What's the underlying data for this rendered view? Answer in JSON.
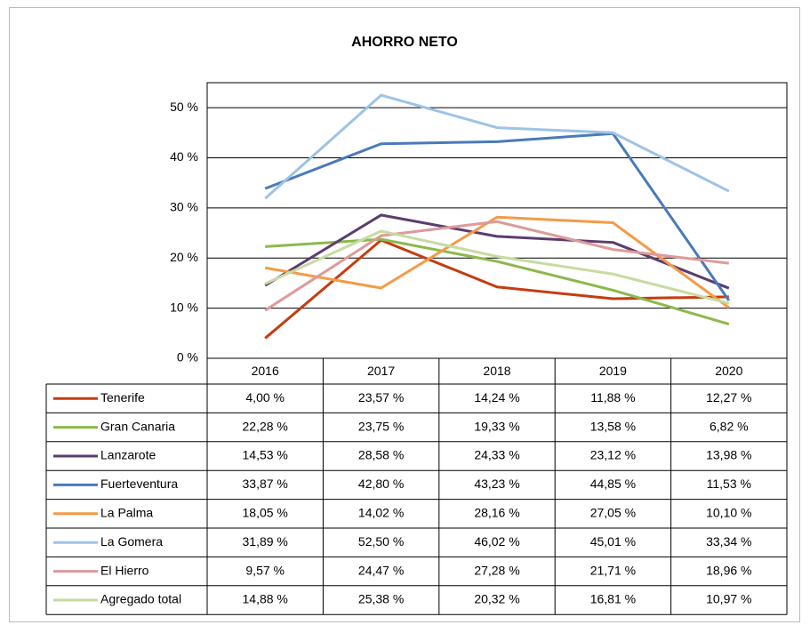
{
  "chart_data": {
    "type": "line",
    "title": "AHORRO NETO",
    "categories": [
      "2016",
      "2017",
      "2018",
      "2019",
      "2020"
    ],
    "ylim": [
      0,
      55
    ],
    "yticks": [
      {
        "value": 0,
        "label": "0 %"
      },
      {
        "value": 10,
        "label": "10 %"
      },
      {
        "value": 20,
        "label": "20 %"
      },
      {
        "value": 30,
        "label": "30 %"
      },
      {
        "value": 40,
        "label": "40 %"
      },
      {
        "value": 50,
        "label": "50 %"
      }
    ],
    "grid": true,
    "series": [
      {
        "name": "Tenerife",
        "color": "#c43c0f",
        "values": [
          4.0,
          23.57,
          14.24,
          11.88,
          12.27
        ],
        "value_labels": [
          "4,00 %",
          "23,57 %",
          "14,24 %",
          "11,88 %",
          "12,27 %"
        ]
      },
      {
        "name": "Gran Canaria",
        "color": "#8db84b",
        "values": [
          22.28,
          23.75,
          19.33,
          13.58,
          6.82
        ],
        "value_labels": [
          "22,28 %",
          "23,75 %",
          "19,33 %",
          "13,58 %",
          "6,82 %"
        ]
      },
      {
        "name": "Lanzarote",
        "color": "#5b3d6e",
        "values": [
          14.53,
          28.58,
          24.33,
          23.12,
          13.98
        ],
        "value_labels": [
          "14,53 %",
          "28,58 %",
          "24,33 %",
          "23,12 %",
          "13,98 %"
        ]
      },
      {
        "name": "Fuerteventura",
        "color": "#4a7ab8",
        "values": [
          33.87,
          42.8,
          43.23,
          44.85,
          11.53
        ],
        "value_labels": [
          "33,87 %",
          "42,80 %",
          "43,23 %",
          "44,85 %",
          "11,53 %"
        ]
      },
      {
        "name": "La Palma",
        "color": "#f59a45",
        "values": [
          18.05,
          14.02,
          28.16,
          27.05,
          10.1
        ],
        "value_labels": [
          "18,05 %",
          "14,02 %",
          "28,16 %",
          "27,05 %",
          "10,10 %"
        ]
      },
      {
        "name": "La Gomera",
        "color": "#9dc3e6",
        "values": [
          31.89,
          52.5,
          46.02,
          45.01,
          33.34
        ],
        "value_labels": [
          "31,89 %",
          "52,50 %",
          "46,02 %",
          "45,01 %",
          "33,34 %"
        ]
      },
      {
        "name": "El Hierro",
        "color": "#de9a9a",
        "values": [
          9.57,
          24.47,
          27.28,
          21.71,
          18.96
        ],
        "value_labels": [
          "9,57 %",
          "24,47 %",
          "27,28 %",
          "21,71 %",
          "18,96 %"
        ]
      },
      {
        "name": "Agregado total",
        "color": "#c7dba0",
        "values": [
          14.88,
          25.38,
          20.32,
          16.81,
          10.97
        ],
        "value_labels": [
          "14,88 %",
          "25,38 %",
          "20,32 %",
          "16,81 %",
          "10,97 %"
        ]
      }
    ]
  }
}
